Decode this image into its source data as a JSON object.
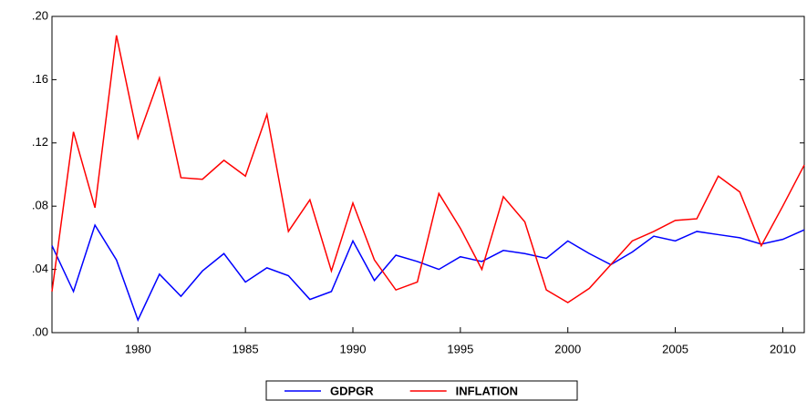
{
  "chart_data": {
    "type": "line",
    "x": [
      1976,
      1977,
      1978,
      1979,
      1980,
      1981,
      1982,
      1983,
      1984,
      1985,
      1986,
      1987,
      1988,
      1989,
      1990,
      1991,
      1992,
      1993,
      1994,
      1995,
      1996,
      1997,
      1998,
      1999,
      2000,
      2001,
      2002,
      2003,
      2004,
      2005,
      2006,
      2007,
      2008,
      2009,
      2010,
      2011
    ],
    "series": [
      {
        "name": "GDPGR",
        "color": "#0000ff",
        "values": [
          0.055,
          0.026,
          0.068,
          0.046,
          0.008,
          0.037,
          0.023,
          0.039,
          0.05,
          0.032,
          0.041,
          0.036,
          0.021,
          0.026,
          0.058,
          0.033,
          0.049,
          0.045,
          0.04,
          0.048,
          0.045,
          0.052,
          0.05,
          0.047,
          0.058,
          0.05,
          0.043,
          0.051,
          0.061,
          0.058,
          0.064,
          0.062,
          0.06,
          0.056,
          0.059,
          0.065
        ]
      },
      {
        "name": "INFLATION",
        "color": "#ff0000",
        "values": [
          0.026,
          0.127,
          0.079,
          0.188,
          0.123,
          0.161,
          0.098,
          0.097,
          0.109,
          0.099,
          0.138,
          0.064,
          0.084,
          0.039,
          0.082,
          0.046,
          0.027,
          0.032,
          0.088,
          0.066,
          0.04,
          0.086,
          0.07,
          0.027,
          0.019,
          0.028,
          0.043,
          0.058,
          0.064,
          0.071,
          0.072,
          0.099,
          0.089,
          0.055,
          0.08,
          0.106
        ]
      }
    ],
    "xlim": [
      1976,
      2011
    ],
    "xticks": [
      1980,
      1985,
      1990,
      1995,
      2000,
      2005,
      2010
    ],
    "ylim": [
      0,
      0.2
    ],
    "yticks": [
      {
        "value": 0,
        "label": ".00"
      },
      {
        "value": 0.04,
        "label": ".04"
      },
      {
        "value": 0.08,
        "label": ".08"
      },
      {
        "value": 0.12,
        "label": ".12"
      },
      {
        "value": 0.16,
        "label": ".16"
      },
      {
        "value": 0.2,
        "label": ".20"
      }
    ]
  }
}
